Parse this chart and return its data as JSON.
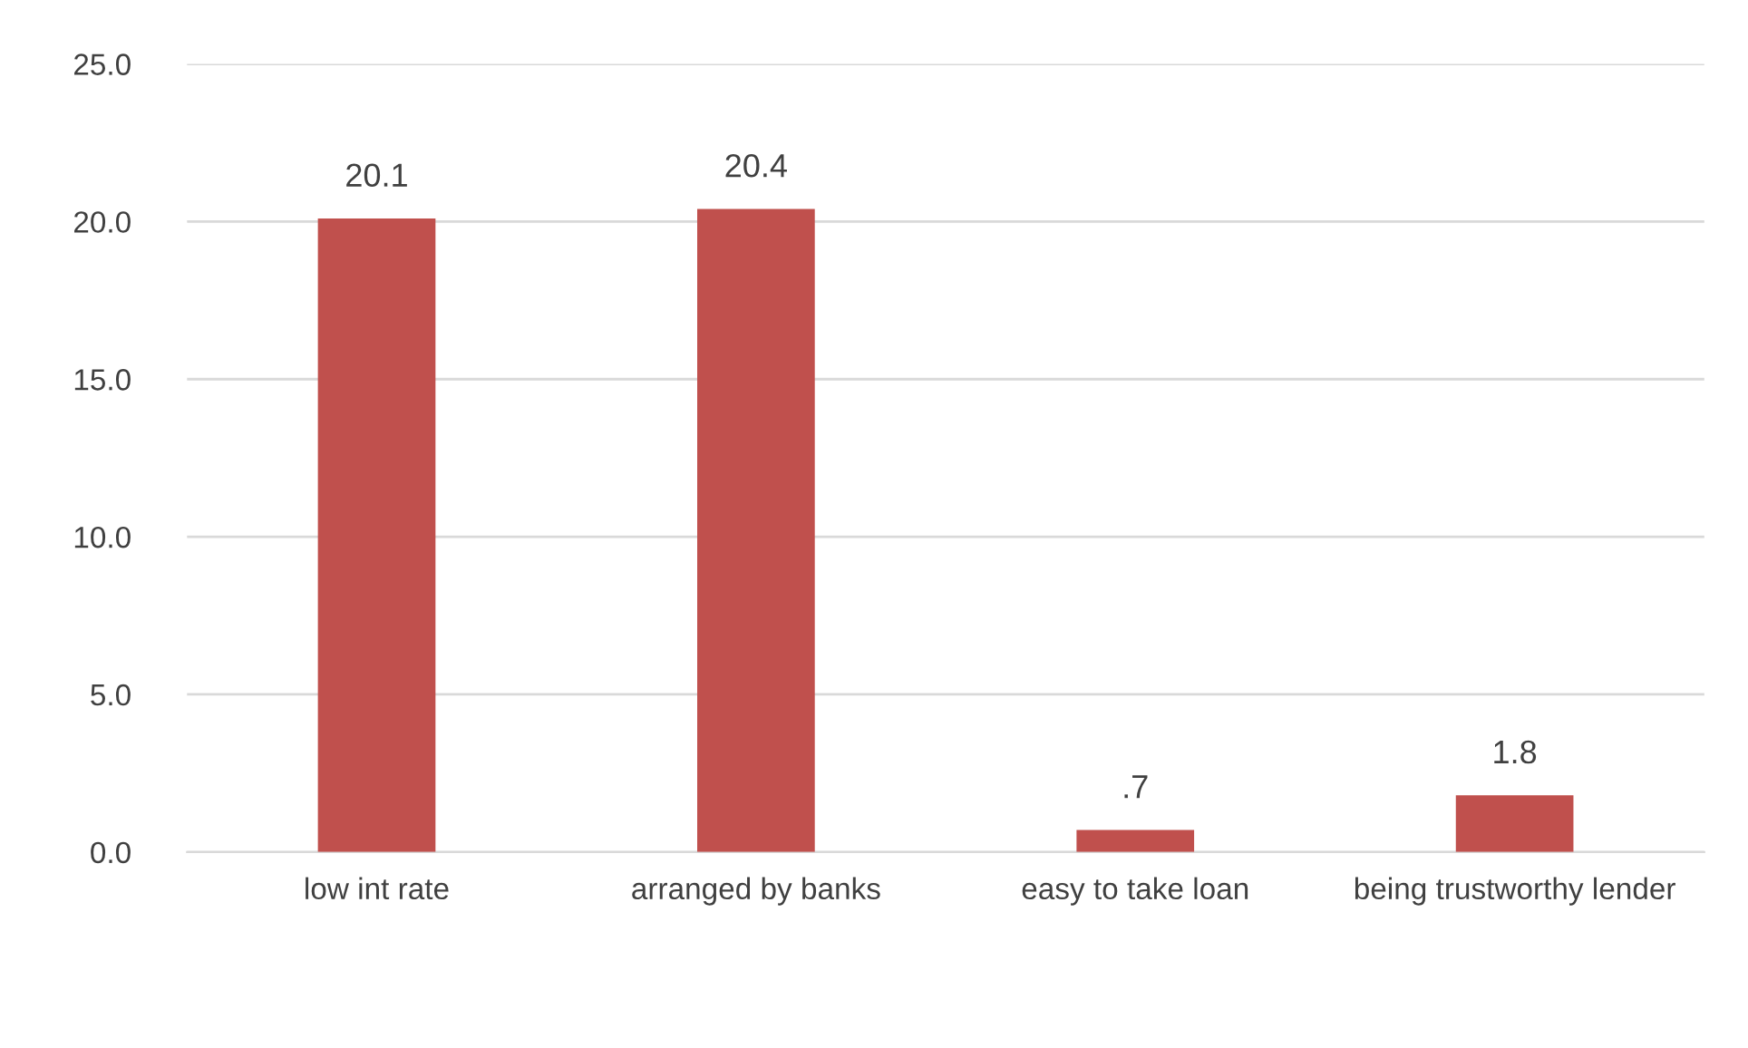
{
  "chart_data": {
    "type": "bar",
    "categories": [
      "low int rate",
      "arranged by banks",
      "easy to take loan",
      "being trustworthy lender"
    ],
    "values": [
      20.1,
      20.4,
      0.7,
      1.8
    ],
    "value_labels": [
      "20.1",
      "20.4",
      ".7",
      "1.8"
    ],
    "color": "#c0504d",
    "ylim": [
      0,
      25
    ],
    "yticks": [
      {
        "value": 0,
        "label": "0.0"
      },
      {
        "value": 5,
        "label": "5.0"
      },
      {
        "value": 10,
        "label": "10.0"
      },
      {
        "value": 15,
        "label": "15.0"
      },
      {
        "value": 20,
        "label": "20.0"
      },
      {
        "value": 25,
        "label": "25.0"
      }
    ],
    "grid": "y",
    "legend": false
  }
}
